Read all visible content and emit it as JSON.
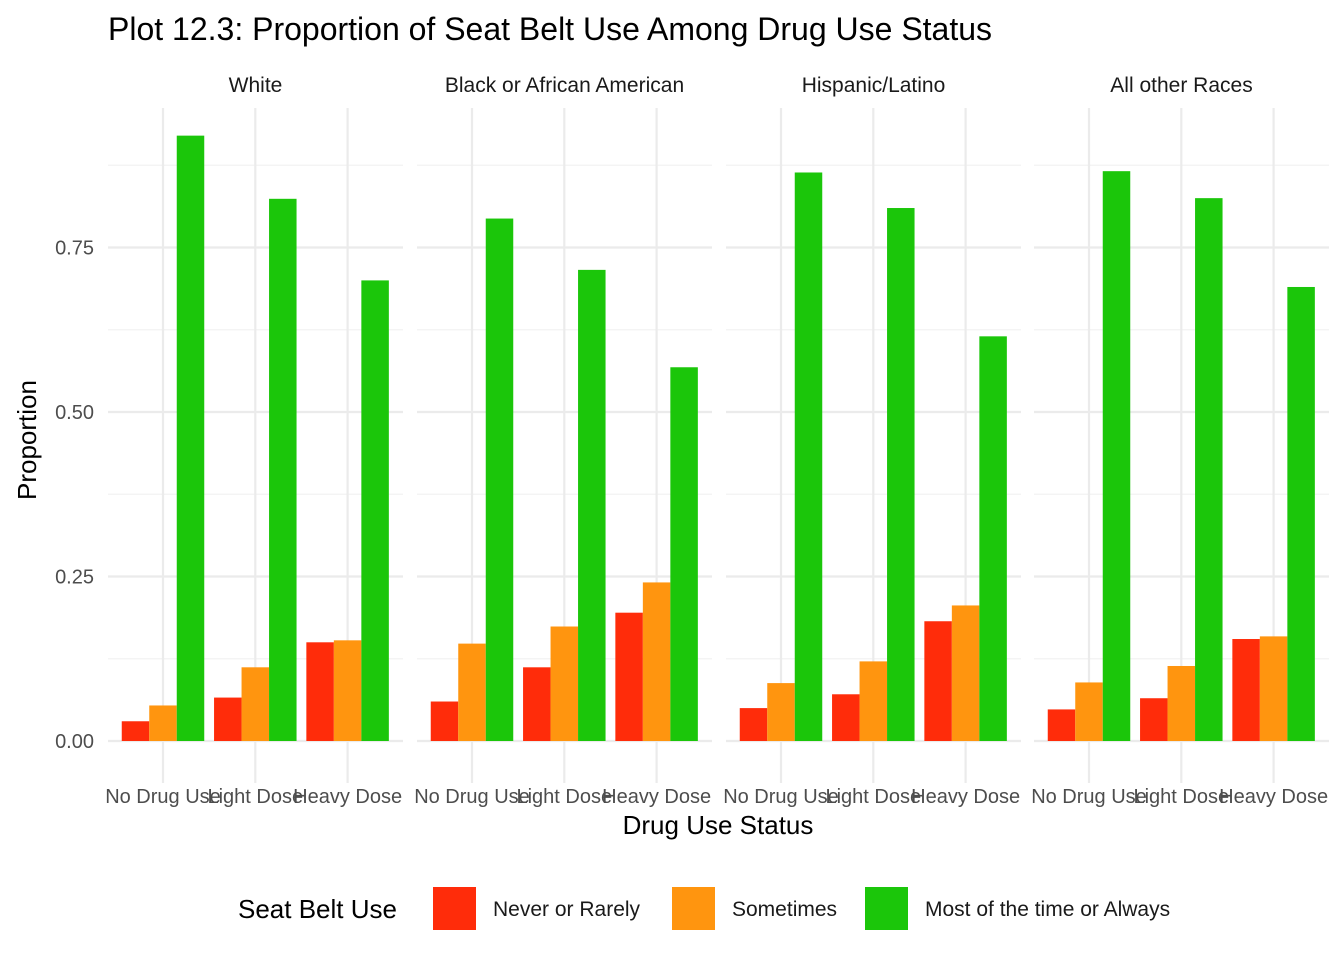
{
  "chart_data": {
    "type": "bar",
    "title": "Plot 12.3: Proportion of Seat Belt Use Among Drug Use Status",
    "xlabel": "Drug Use Status",
    "ylabel": "Proportion",
    "ylim": [
      0,
      0.95
    ],
    "yticks": [
      {
        "value": 0,
        "label": "0.00"
      },
      {
        "value": 0.25,
        "label": "0.25"
      },
      {
        "value": 0.5,
        "label": "0.50"
      },
      {
        "value": 0.75,
        "label": "0.75"
      }
    ],
    "grid": true,
    "legend_position": "bottom",
    "legend_title": "Seat Belt Use",
    "categories": [
      "No Drug Use",
      "Light Dose",
      "Heavy Dose"
    ],
    "series_meta": [
      {
        "name": "Never or Rarely",
        "color": "#FF2C0A"
      },
      {
        "name": "Sometimes",
        "color": "#FF950F"
      },
      {
        "name": "Most of the time or Always",
        "color": "#1BC60A"
      }
    ],
    "facets": [
      {
        "name": "White",
        "series": [
          {
            "name": "Never or Rarely",
            "values": [
              0.03,
              0.066,
              0.15
            ]
          },
          {
            "name": "Sometimes",
            "values": [
              0.054,
              0.112,
              0.153
            ]
          },
          {
            "name": "Most of the time or Always",
            "values": [
              0.92,
              0.824,
              0.7
            ]
          }
        ]
      },
      {
        "name": "Black or African American",
        "series": [
          {
            "name": "Never or Rarely",
            "values": [
              0.06,
              0.112,
              0.195
            ]
          },
          {
            "name": "Sometimes",
            "values": [
              0.148,
              0.174,
              0.241
            ]
          },
          {
            "name": "Most of the time or Always",
            "values": [
              0.794,
              0.716,
              0.568
            ]
          }
        ]
      },
      {
        "name": "Hispanic/Latino",
        "series": [
          {
            "name": "Never or Rarely",
            "values": [
              0.05,
              0.071,
              0.182
            ]
          },
          {
            "name": "Sometimes",
            "values": [
              0.088,
              0.121,
              0.206
            ]
          },
          {
            "name": "Most of the time or Always",
            "values": [
              0.864,
              0.81,
              0.615
            ]
          }
        ]
      },
      {
        "name": "All other Races",
        "series": [
          {
            "name": "Never or Rarely",
            "values": [
              0.048,
              0.065,
              0.155
            ]
          },
          {
            "name": "Sometimes",
            "values": [
              0.089,
              0.114,
              0.159
            ]
          },
          {
            "name": "Most of the time or Always",
            "values": [
              0.866,
              0.825,
              0.69
            ]
          }
        ]
      }
    ]
  }
}
